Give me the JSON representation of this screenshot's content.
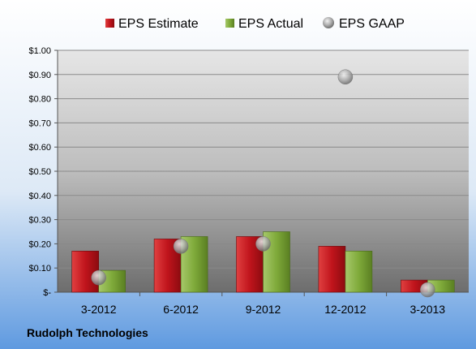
{
  "chart_data": {
    "type": "bar",
    "categories": [
      "3-2012",
      "6-2012",
      "9-2012",
      "12-2012",
      "3-2013"
    ],
    "series": [
      {
        "name": "EPS Estimate",
        "kind": "bar",
        "color": "#c0141c",
        "values": [
          0.17,
          0.22,
          0.23,
          0.19,
          0.05
        ]
      },
      {
        "name": "EPS Actual",
        "kind": "bar",
        "color": "#7faa3a",
        "values": [
          0.09,
          0.23,
          0.25,
          0.17,
          0.05
        ]
      },
      {
        "name": "EPS GAAP",
        "kind": "marker",
        "color": "#a9a9a9",
        "values": [
          0.06,
          0.19,
          0.2,
          0.89,
          0.01
        ]
      }
    ],
    "ylim": [
      0,
      1.0
    ],
    "yticks": [
      0,
      0.1,
      0.2,
      0.3,
      0.4,
      0.5,
      0.6,
      0.7,
      0.8,
      0.9,
      1.0
    ],
    "ytick_labels": [
      "$-",
      "$0.10",
      "$0.20",
      "$0.30",
      "$0.40",
      "$0.50",
      "$0.60",
      "$0.70",
      "$0.80",
      "$0.90",
      "$1.00"
    ],
    "legend_position": "top",
    "grid": true
  },
  "footer": {
    "company": "Rudolph Technologies"
  }
}
